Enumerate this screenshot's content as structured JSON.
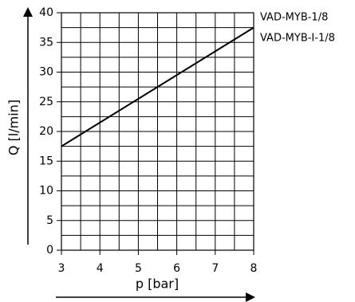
{
  "chart_data": {
    "type": "line",
    "title": "",
    "xlabel": "p [bar]",
    "ylabel": "Q [l/min]",
    "xlim": [
      3,
      8
    ],
    "ylim": [
      0,
      40
    ],
    "xticks": [
      "3",
      "4",
      "5",
      "6",
      "7",
      "8"
    ],
    "yticks": [
      "0",
      "5",
      "10",
      "15",
      "20",
      "25",
      "30",
      "35",
      "40"
    ],
    "grid": true,
    "series": [
      {
        "x": [
          3,
          8
        ],
        "y": [
          17.5,
          37.5
        ]
      }
    ],
    "labels": [
      "VAD-MYB-1/8",
      "VAD-MYB-I-1/8"
    ]
  }
}
